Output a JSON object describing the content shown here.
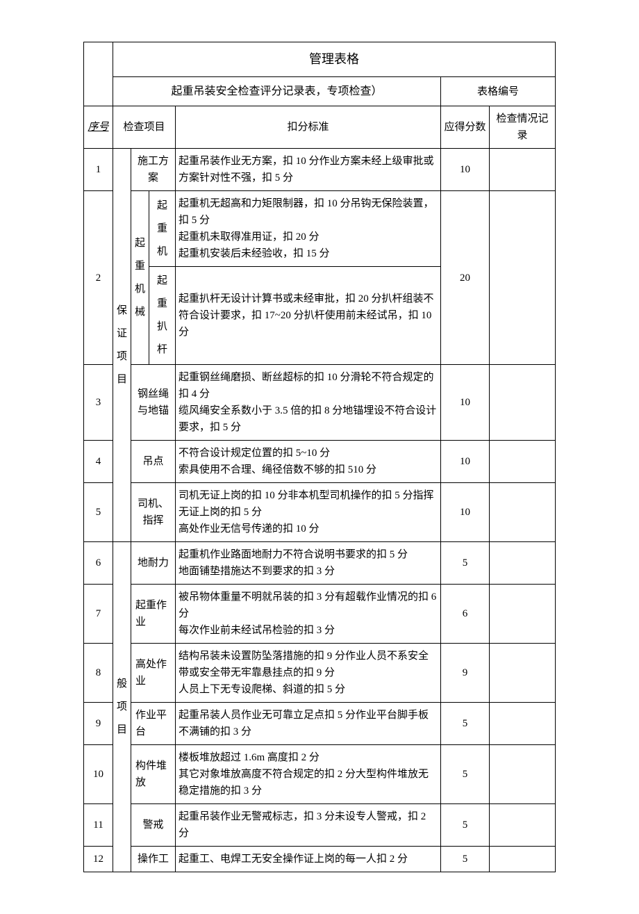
{
  "header": {
    "title": "管理表格",
    "subtitle": "起重吊装安全检查评分记录表，专项检查）",
    "form_number_label": "表格编号"
  },
  "columns": {
    "seq": "序号",
    "check_item": "检查项目",
    "standard": "扣分标准",
    "score": "应得分数",
    "record": "检查情况记录"
  },
  "cat1": "保证项目",
  "cat2": "般项目",
  "rows": {
    "r1": {
      "seq": "1",
      "item": "施工方案",
      "std": "起重吊装作业无方案，扣 10 分作业方案未经上级审批或方案针对性不强，扣 5 分",
      "score": "10"
    },
    "r2": {
      "seq": "2",
      "item_parent": "起重机械",
      "item_a": "起重机",
      "item_b": "起重扒杆",
      "std_a": "起重机无超高和力矩限制器，扣 10 分吊钩无保险装置，扣 5 分\n起重机未取得准用证，扣 20 分\n起重机安装后未经验收，扣 15 分",
      "std_b": "起重扒杆无设计计算书或未经审批，扣 20 分扒杆组装不符合设计要求，扣 17~20 分扒杆使用前未经试吊，扣 10 分",
      "score": "20"
    },
    "r3": {
      "seq": "3",
      "item": "钢丝绳与地锚",
      "std": "起重钢丝绳磨损、断丝超标的扣 10 分滑轮不符合规定的扣 4 分\n缆风绳安全系数小于 3.5 倍的扣 8 分地锚埋设不符合设计要求，扣 5 分",
      "score": "10"
    },
    "r4": {
      "seq": "4",
      "item": "吊点",
      "std": "不符合设计规定位置的扣 5~10 分\n索具使用不合理、绳径倍数不够的扣 510 分",
      "score": "10"
    },
    "r5": {
      "seq": "5",
      "item": "司机、指挥",
      "std": "司机无证上岗的扣 10 分非本机型司机操作的扣 5 分指挥无证上岗的扣 5 分\n高处作业无信号传递的扣 10 分",
      "score": "10"
    },
    "r6": {
      "seq": "6",
      "item": "地耐力",
      "std": "起重机作业路面地耐力不符合说明书要求的扣 5 分\n地面铺垫措施达不到要求的扣 3 分",
      "score": "5"
    },
    "r7": {
      "seq": "7",
      "item": "起重作业",
      "std": "被吊物体重量不明就吊装的扣 3 分有超载作业情况的扣 6 分\n每次作业前未经试吊检验的扣 3 分",
      "score": "6"
    },
    "r8": {
      "seq": "8",
      "item": "高处作业",
      "std": "结构吊装未设置防坠落措施的扣 9 分作业人员不系安全带或安全带无牢靠悬挂点的扣 9 分\n人员上下无专设爬梯、斜道的扣 5 分",
      "score": "9"
    },
    "r9": {
      "seq": "9",
      "item": "作业平台",
      "std": "起重吊装人员作业无可靠立足点扣 5 分作业平台脚手板不满铺的扣 3 分",
      "score": "5"
    },
    "r10": {
      "seq": "10",
      "item": "构件堆放",
      "std": "楼板堆放超过 1.6m 高度扣 2 分\n其它对象堆放高度不符合规定的扣 2 分大型构件堆放无稳定措施的扣 3 分",
      "score": "5"
    },
    "r11": {
      "seq": "11",
      "item": "警戒",
      "std": "起重吊装作业无警戒标志，扣 3 分未设专人警戒，扣 2 分",
      "score": "5"
    },
    "r12": {
      "seq": "12",
      "item": "操作工",
      "std": "起重工、电焊工无安全操作证上岗的每一人扣 2 分",
      "score": "5"
    }
  }
}
